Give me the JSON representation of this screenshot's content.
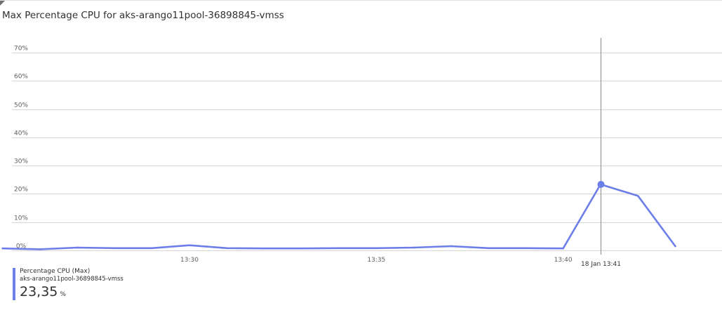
{
  "title": "Max Percentage CPU for aks-arango11pool-36898845-vmss",
  "colors": {
    "series": "#6c7ee8",
    "grid": "#d6d6d6",
    "cursor": "#8a8a8a",
    "axis_text": "#605e5c"
  },
  "chart_data": {
    "type": "line",
    "title": "Max Percentage CPU for aks-arango11pool-36898845-vmss",
    "x_unit": "minutes (time of day)",
    "xlim": [
      "13:25:15",
      "13:44:15"
    ],
    "ylim": [
      0,
      70
    ],
    "y_ticks": [
      0,
      10,
      20,
      30,
      40,
      50,
      60,
      70
    ],
    "y_tick_labels": [
      "0%",
      "10%",
      "20%",
      "30%",
      "40%",
      "50%",
      "60%",
      "70%"
    ],
    "x_ticks": [
      "13:30",
      "13:35",
      "13:40"
    ],
    "grid": true,
    "series": [
      {
        "name": "Percentage CPU (Max)",
        "x": [
          "13:25",
          "13:26",
          "13:27",
          "13:28",
          "13:29",
          "13:30",
          "13:31",
          "13:32",
          "13:33",
          "13:34",
          "13:35",
          "13:36",
          "13:37",
          "13:38",
          "13:39",
          "13:40",
          "13:41",
          "13:42",
          "13:43"
        ],
        "values": [
          0.7,
          0.4,
          1.0,
          0.8,
          0.8,
          1.8,
          0.8,
          0.7,
          0.7,
          0.8,
          0.8,
          1.0,
          1.5,
          0.8,
          0.8,
          0.7,
          23.35,
          19.3,
          1.5
        ]
      }
    ],
    "cursor": {
      "x": "13:41",
      "label": "18 Jan 13:41",
      "value": 23.35
    }
  },
  "legend": {
    "series_name": "Percentage CPU (Max)",
    "resource": "aks-arango11pool-36898845-vmss",
    "value": "23,35",
    "unit": "%"
  }
}
